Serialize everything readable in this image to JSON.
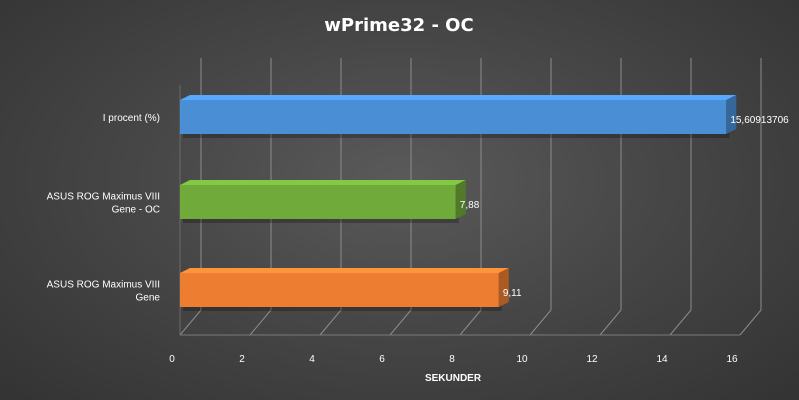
{
  "chart_data": {
    "type": "bar",
    "orientation": "horizontal",
    "style": "3d-bar",
    "title": "wPrime32  - OC",
    "xlabel": "SEKUNDER",
    "ylabel": "",
    "xlim": [
      0,
      16
    ],
    "xticks": [
      0,
      2,
      4,
      6,
      8,
      10,
      12,
      14,
      16
    ],
    "categories": [
      [
        "I procent (%)"
      ],
      [
        "ASUS ROG Maximus VIII",
        "Gene - OC"
      ],
      [
        "ASUS ROG Maximus VIII",
        "Gene"
      ]
    ],
    "values": [
      15.60913706,
      7.88,
      9.11
    ],
    "data_labels": [
      "15,60913706",
      "7,88",
      "9,11"
    ],
    "colors": [
      "#4a8fd6",
      "#6faa3a",
      "#ed7d31"
    ],
    "grid": true,
    "legend": "none"
  }
}
